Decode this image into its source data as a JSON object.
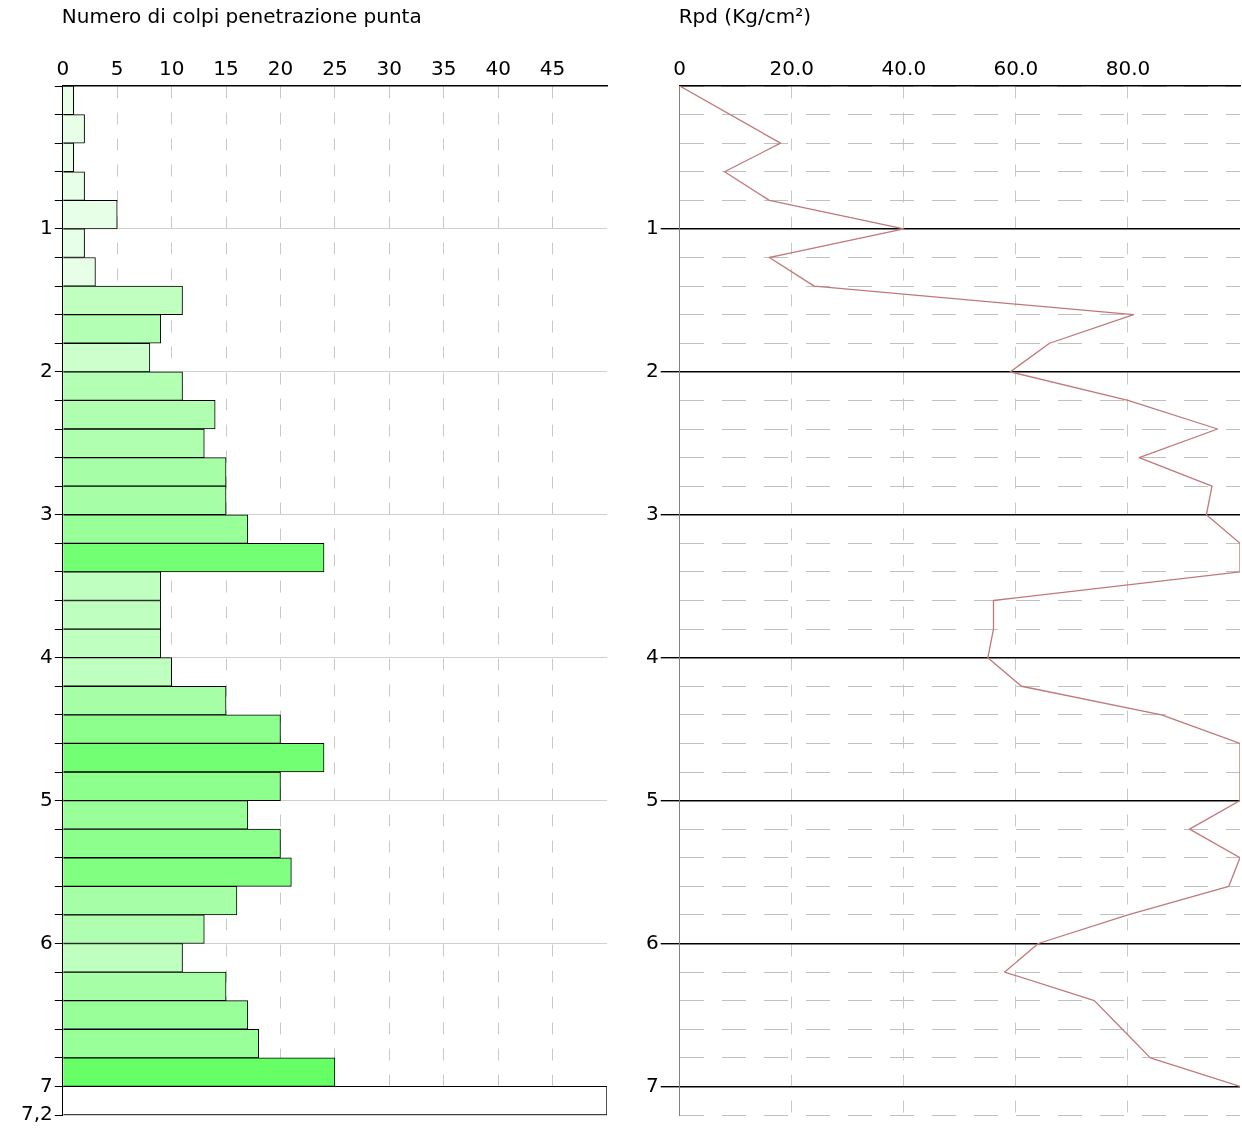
{
  "chart_data": [
    {
      "type": "histogram",
      "orientation": "horizontal",
      "title": "Numero di colpi penetrazione punta",
      "bins": [
        0,
        0.2,
        0.4,
        0.6,
        0.8,
        1,
        1.2,
        1.4,
        1.6,
        1.8,
        2,
        2.2,
        2.4,
        2.6,
        2.8,
        3,
        3.2,
        3.4,
        3.6,
        3.8,
        4,
        4.2,
        4.4,
        4.6,
        4.8,
        5,
        5.2,
        5.4,
        5.6,
        5.8,
        6,
        6.2,
        6.4,
        6.6,
        6.8,
        7,
        7.2
      ],
      "values": [
        1,
        2,
        1,
        2,
        5,
        2,
        3,
        11,
        9,
        8,
        11,
        14,
        13,
        15,
        15,
        17,
        24,
        9,
        9,
        9,
        10,
        15,
        20,
        24,
        20,
        17,
        20,
        21,
        16,
        13,
        11,
        15,
        17,
        18,
        25,
        50
      ],
      "colors": [
        "#e6ffe6",
        "#e6ffe6",
        "#e6ffe6",
        "#e6ffe6",
        "#e6ffe6",
        "#e6ffe6",
        "#e6ffe6",
        "#c0ffc0",
        "#b3ffb3",
        "#ccffcc",
        "#b3ffb3",
        "#b0ffb0",
        "#b0ffb0",
        "#a6ffa6",
        "#a6ffa6",
        "#99ff99",
        "#73ff73",
        "#bfffbf",
        "#bfffbf",
        "#bfffbf",
        "#bfffbf",
        "#a6ffa6",
        "#8cff8c",
        "#73ff73",
        "#8cff8c",
        "#99ff99",
        "#8cff8c",
        "#80ff80",
        "#a6ffa6",
        "#b0ffb0",
        "#bfffbf",
        "#a6ffa6",
        "#99ff99",
        "#99ff99",
        "#66ff66",
        "#ffffff"
      ],
      "xlim": [
        0,
        50
      ],
      "xticks": [
        0,
        5,
        10,
        15,
        20,
        25,
        30,
        35,
        40,
        45
      ],
      "ylim": [
        7.2,
        0
      ],
      "yticks": [
        {
          "value": 0,
          "label": null
        },
        {
          "value": 0.2,
          "label": null
        },
        {
          "value": 0.4,
          "label": null
        },
        {
          "value": 0.6,
          "label": null
        },
        {
          "value": 0.8,
          "label": null
        },
        1,
        {
          "value": 1.2,
          "label": null
        },
        {
          "value": 1.4,
          "label": null
        },
        {
          "value": 1.6,
          "label": null
        },
        {
          "value": 1.8,
          "label": null
        },
        2,
        {
          "value": 2.2,
          "label": null
        },
        {
          "value": 2.4,
          "label": null
        },
        {
          "value": 2.6,
          "label": null
        },
        {
          "value": 2.8,
          "label": null
        },
        3,
        {
          "value": 3.2,
          "label": null
        },
        {
          "value": 3.4,
          "label": null
        },
        {
          "value": 3.6,
          "label": null
        },
        {
          "value": 3.8,
          "label": null
        },
        4,
        {
          "value": 4.2,
          "label": null
        },
        {
          "value": 4.4,
          "label": null
        },
        {
          "value": 4.6,
          "label": null
        },
        {
          "value": 4.8,
          "label": null
        },
        5,
        {
          "value": 5.2,
          "label": null
        },
        {
          "value": 5.4,
          "label": null
        },
        {
          "value": 5.6,
          "label": null
        },
        {
          "value": 5.8,
          "label": null
        },
        6,
        {
          "value": 6.2,
          "label": null
        },
        {
          "value": 6.4,
          "label": null
        },
        {
          "value": 6.6,
          "label": null
        },
        {
          "value": 6.8,
          "label": null
        },
        7,
        {
          "value": 7.2,
          "label": "7,2"
        }
      ],
      "grid": true,
      "legend": false
    },
    {
      "type": "line",
      "orientation": "horizontal",
      "title": "Rpd (Kg/cm²)",
      "x": [
        0,
        0.4,
        0.6,
        0.8,
        1,
        1.2,
        1.4,
        1.6,
        1.8,
        2,
        2.2,
        2.4,
        2.6,
        2.8,
        3,
        3.2,
        3.4,
        3.6,
        3.8,
        4,
        4.2,
        4.4,
        4.6,
        4.8,
        5,
        5.2,
        5.4,
        5.6,
        5.8,
        6,
        6.2,
        6.4,
        6.6,
        6.8,
        7
      ],
      "series": [
        {
          "color": "#c07878",
          "values": [
            0,
            18,
            8,
            16,
            40,
            16,
            24,
            81,
            66,
            59,
            80,
            96,
            82,
            95,
            94,
            100,
            100,
            56,
            56,
            55,
            61,
            86,
            100,
            100,
            100,
            91,
            100,
            98,
            80,
            64,
            58,
            74,
            79,
            84,
            100
          ]
        }
      ],
      "marker": "none",
      "line_style": "solid",
      "xlim": [
        0,
        100
      ],
      "xticks": [
        {
          "value": 0,
          "label": "0"
        },
        {
          "value": 20,
          "label": "20.0"
        },
        {
          "value": 40,
          "label": "40.0"
        },
        {
          "value": 60,
          "label": "60.0"
        },
        {
          "value": 80,
          "label": "80.0"
        }
      ],
      "ylim": [
        7.2,
        0
      ],
      "yticks": [
        {
          "value": 0,
          "label": null
        },
        {
          "value": 0.2,
          "label": null
        },
        {
          "value": 0.4,
          "label": null
        },
        {
          "value": 0.6,
          "label": null
        },
        {
          "value": 0.8,
          "label": null
        },
        1,
        {
          "value": 1.2,
          "label": null
        },
        {
          "value": 1.4,
          "label": null
        },
        {
          "value": 1.6,
          "label": null
        },
        {
          "value": 1.8,
          "label": null
        },
        2,
        {
          "value": 2.2,
          "label": null
        },
        {
          "value": 2.4,
          "label": null
        },
        {
          "value": 2.6,
          "label": null
        },
        {
          "value": 2.8,
          "label": null
        },
        3,
        {
          "value": 3.2,
          "label": null
        },
        {
          "value": 3.4,
          "label": null
        },
        {
          "value": 3.6,
          "label": null
        },
        {
          "value": 3.8,
          "label": null
        },
        4,
        {
          "value": 4.2,
          "label": null
        },
        {
          "value": 4.4,
          "label": null
        },
        {
          "value": 4.6,
          "label": null
        },
        {
          "value": 4.8,
          "label": null
        },
        5,
        {
          "value": 5.2,
          "label": null
        },
        {
          "value": 5.4,
          "label": null
        },
        {
          "value": 5.6,
          "label": null
        },
        {
          "value": 5.8,
          "label": null
        },
        6,
        {
          "value": 6.2,
          "label": null
        },
        {
          "value": 6.4,
          "label": null
        },
        {
          "value": 6.6,
          "label": null
        },
        {
          "value": 6.8,
          "label": null
        },
        7,
        {
          "value": 7.2,
          "label": null
        }
      ],
      "grid": true,
      "legend": false
    }
  ]
}
